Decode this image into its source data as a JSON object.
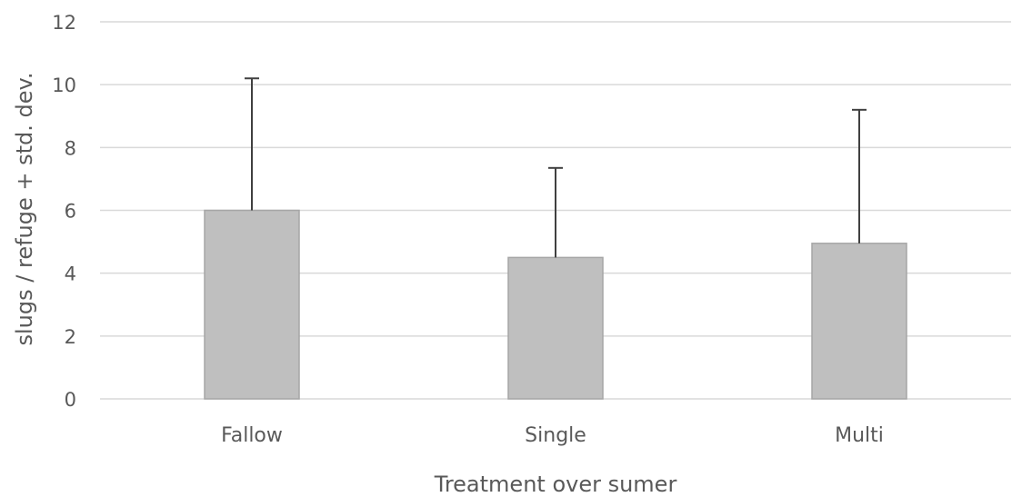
{
  "chart_data": {
    "type": "bar",
    "title": "",
    "xlabel": "Treatment over sumer",
    "ylabel": "slugs / refuge + std. dev.",
    "categories": [
      "Fallow",
      "Single",
      "Multi"
    ],
    "values": [
      6.0,
      4.5,
      4.95
    ],
    "error_plus": [
      4.2,
      2.85,
      4.25
    ],
    "ylim": [
      0,
      12
    ],
    "yticks": [
      0,
      2,
      4,
      6,
      8,
      10,
      12
    ],
    "grid": true,
    "legend": "none",
    "colors": {
      "bar_fill": "#bfbfbf",
      "bar_stroke": "#a6a6a6",
      "error_bar": "#404040",
      "grid": "#d9d9d9",
      "text": "#595959"
    }
  }
}
